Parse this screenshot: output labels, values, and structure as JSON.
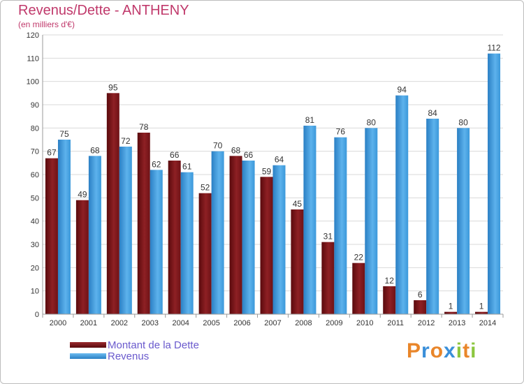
{
  "header": {
    "title": "Revenus/Dette - ANTHENY",
    "subtitle": "(en milliers d'€)"
  },
  "legend": {
    "items": [
      {
        "label": "Montant de la Dette",
        "color": "#7a1418"
      },
      {
        "label": "Revenus",
        "color": "#3d9ee2"
      }
    ]
  },
  "logo": {
    "letters": [
      "P",
      "r",
      "o",
      "x",
      "i",
      "t",
      "i"
    ],
    "colors": [
      "#e9862a",
      "#3a8fd9",
      "#e9862a",
      "#3a8fd9",
      "#8cc63f",
      "#e9862a",
      "#8cc63f"
    ]
  },
  "chart_data": {
    "type": "bar",
    "categories": [
      "2000",
      "2001",
      "2002",
      "2003",
      "2004",
      "2005",
      "2006",
      "2007",
      "2008",
      "2009",
      "2010",
      "2011",
      "2012",
      "2013",
      "2014"
    ],
    "series": [
      {
        "name": "Montant de la Dette",
        "color": "#7a1418",
        "values": [
          67,
          49,
          95,
          78,
          66,
          52,
          68,
          59,
          45,
          31,
          22,
          12,
          6,
          1,
          1
        ]
      },
      {
        "name": "Revenus",
        "color": "#3d9ee2",
        "values": [
          75,
          68,
          72,
          62,
          61,
          70,
          66,
          64,
          81,
          76,
          80,
          94,
          84,
          80,
          112
        ]
      }
    ],
    "yticks": [
      0,
      10,
      20,
      30,
      40,
      50,
      60,
      70,
      80,
      90,
      100,
      110,
      120
    ],
    "ylim": [
      0,
      120
    ],
    "grid": true,
    "legend_position": "bottom-left"
  }
}
